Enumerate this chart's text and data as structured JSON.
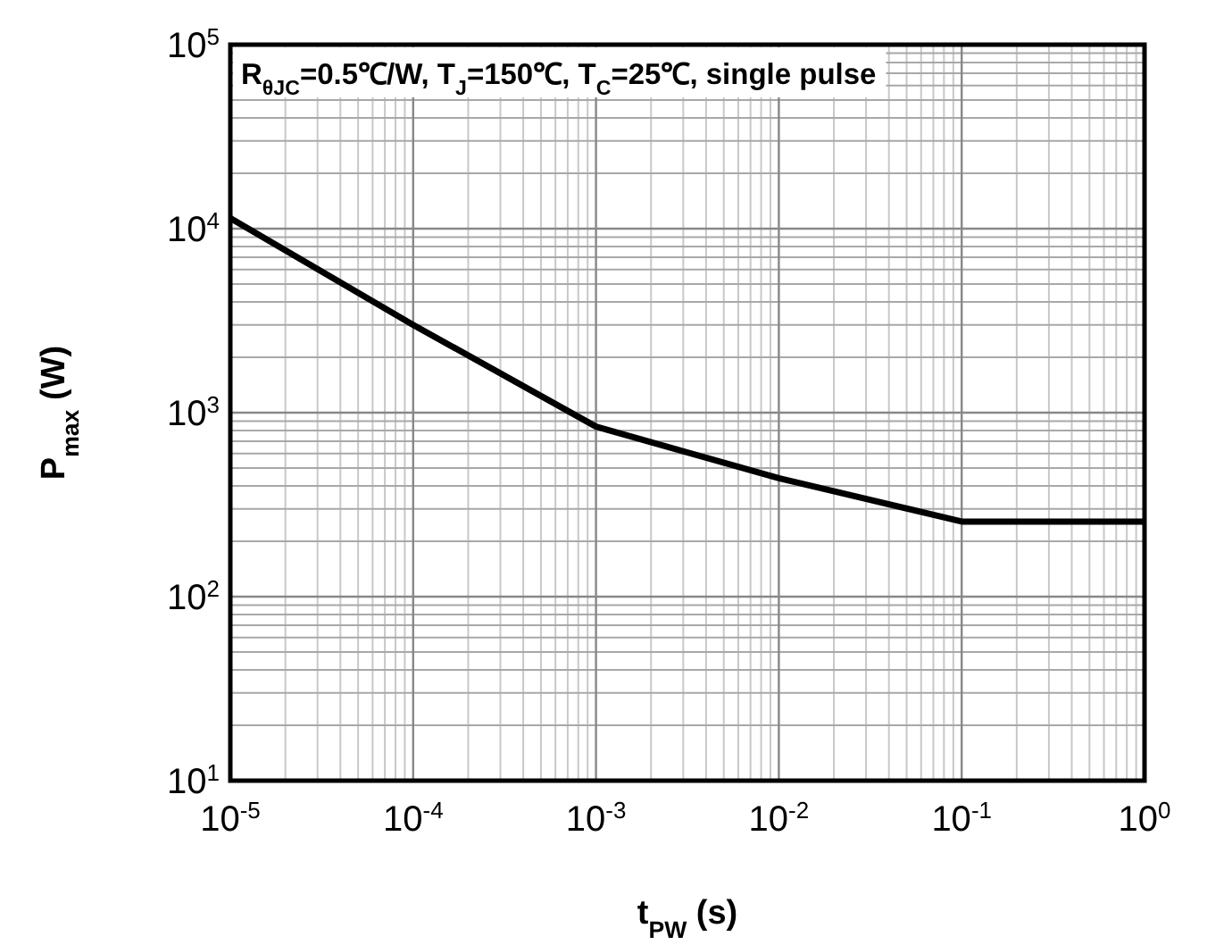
{
  "chart_data": {
    "type": "line",
    "xlabel": "t$_{PW}$ (s)",
    "ylabel": "P$_{max}$ (W)",
    "annotations": [
      "R$_{θJC}$=0.5℃/W, T$_{J}$=150℃, T$_{C}$=25℃, single pulse"
    ],
    "log": "xy",
    "grid": true,
    "marker": "none",
    "line_style": "solid",
    "xlim": [
      1e-05,
      1
    ],
    "ylim": [
      10,
      100000
    ],
    "xticks": [
      {
        "value": 1e-05,
        "label": "10$^{-5}$"
      },
      {
        "value": 0.0001,
        "label": "10$^{-4}$"
      },
      {
        "value": 0.001,
        "label": "10$^{-3}$"
      },
      {
        "value": 0.01,
        "label": "10$^{-2}$"
      },
      {
        "value": 0.1,
        "label": "10$^{-1}$"
      },
      {
        "value": 1,
        "label": "10$^{0}$"
      }
    ],
    "yticks": [
      {
        "value": 10,
        "label": "10$^{1}$"
      },
      {
        "value": 100,
        "label": "10$^{2}$"
      },
      {
        "value": 1000,
        "label": "10$^{3}$"
      },
      {
        "value": 10000,
        "label": "10$^{4}$"
      },
      {
        "value": 100000,
        "label": "10$^{5}$"
      }
    ],
    "x": [
      1e-05,
      0.0001,
      0.001,
      0.01,
      0.1,
      1
    ],
    "series": [
      {
        "color": "#000000",
        "values": [
          11400,
          3000,
          840,
          440,
          256,
          256
        ]
      }
    ]
  }
}
